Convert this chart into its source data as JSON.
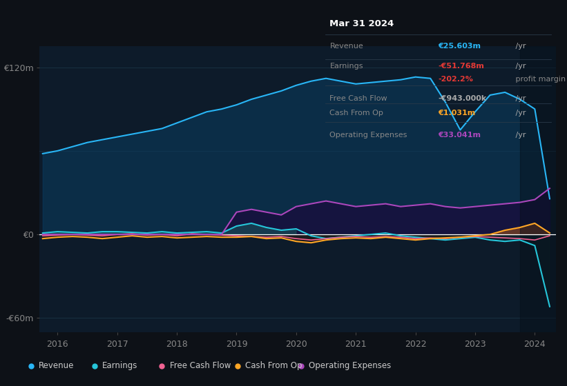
{
  "bg_color": "#0d1117",
  "plot_bg_color": "#0d1b2a",
  "grid_color": "#1e3a4a",
  "zero_line_color": "#ffffff",
  "ylim": [
    -70,
    135
  ],
  "xlim": [
    2015.7,
    2024.35
  ],
  "yticks": [
    -60,
    0,
    120
  ],
  "ytick_labels": [
    "-€60m",
    "€0",
    "€120m"
  ],
  "xticks": [
    2016,
    2017,
    2018,
    2019,
    2020,
    2021,
    2022,
    2023,
    2024
  ],
  "revenue_color": "#29b6f6",
  "earnings_color": "#26c6da",
  "fcf_color": "#f06292",
  "cashfromop_color": "#ffa726",
  "opex_color": "#ab47bc",
  "revenue_fill_color": "#0a3a5c",
  "opex_fill_color": "#1a0a3c",
  "annotation_title": "Mar 31 2024",
  "annotation_revenue": "€25.603m",
  "annotation_earnings": "-€51.768m",
  "annotation_margin": "-202.2%",
  "annotation_fcf": "-€943.000k",
  "annotation_cashfromop": "€1.031m",
  "annotation_opex": "€33.041m",
  "legend_labels": [
    "Revenue",
    "Earnings",
    "Free Cash Flow",
    "Cash From Op",
    "Operating Expenses"
  ],
  "shade_start_x": 2023.75,
  "revenue_data_x": [
    2015.75,
    2016.0,
    2016.25,
    2016.5,
    2016.75,
    2017.0,
    2017.25,
    2017.5,
    2017.75,
    2018.0,
    2018.25,
    2018.5,
    2018.75,
    2019.0,
    2019.25,
    2019.5,
    2019.75,
    2020.0,
    2020.25,
    2020.5,
    2020.75,
    2021.0,
    2021.25,
    2021.5,
    2021.75,
    2022.0,
    2022.25,
    2022.5,
    2022.75,
    2023.0,
    2023.25,
    2023.5,
    2023.75,
    2024.0,
    2024.25
  ],
  "revenue_data_y": [
    58,
    60,
    63,
    66,
    68,
    70,
    72,
    74,
    76,
    80,
    84,
    88,
    90,
    93,
    97,
    100,
    103,
    107,
    110,
    112,
    110,
    108,
    109,
    110,
    111,
    113,
    112,
    95,
    75,
    88,
    100,
    102,
    97,
    90,
    25.6
  ],
  "earnings_data_x": [
    2015.75,
    2016.0,
    2016.25,
    2016.5,
    2016.75,
    2017.0,
    2017.25,
    2017.5,
    2017.75,
    2018.0,
    2018.25,
    2018.5,
    2018.75,
    2019.0,
    2019.25,
    2019.5,
    2019.75,
    2020.0,
    2020.25,
    2020.5,
    2020.75,
    2021.0,
    2021.25,
    2021.5,
    2021.75,
    2022.0,
    2022.25,
    2022.5,
    2022.75,
    2023.0,
    2023.25,
    2023.5,
    2023.75,
    2024.0,
    2024.25
  ],
  "earnings_data_y": [
    1,
    2,
    1.5,
    1,
    2,
    2,
    1.5,
    1,
    2,
    1,
    1.5,
    2,
    1,
    6,
    8,
    5,
    3,
    4,
    -1,
    -3,
    -2,
    -1,
    0,
    1,
    -1,
    -2,
    -3,
    -4,
    -3,
    -2,
    -4,
    -5,
    -4,
    -8,
    -51.768
  ],
  "fcf_data_x": [
    2015.75,
    2016.0,
    2016.25,
    2016.5,
    2016.75,
    2017.0,
    2017.25,
    2017.5,
    2017.75,
    2018.0,
    2018.25,
    2018.5,
    2018.75,
    2019.0,
    2019.25,
    2019.5,
    2019.75,
    2020.0,
    2020.25,
    2020.5,
    2020.75,
    2021.0,
    2021.25,
    2021.5,
    2021.75,
    2022.0,
    2022.25,
    2022.5,
    2022.75,
    2023.0,
    2023.25,
    2023.5,
    2023.75,
    2024.0,
    2024.25
  ],
  "fcf_data_y": [
    -1,
    -0.5,
    0,
    -0.5,
    -1,
    0,
    0.5,
    -0.5,
    0,
    -1,
    0.5,
    0,
    -0.5,
    -1,
    -1.5,
    -2,
    -1.5,
    -3,
    -4,
    -3,
    -2,
    -1.5,
    -2,
    -1.5,
    -2,
    -3,
    -2.5,
    -3,
    -2,
    -1.5,
    -2,
    -2.5,
    -3,
    -4,
    -0.943
  ],
  "cashfromop_data_x": [
    2015.75,
    2016.0,
    2016.25,
    2016.5,
    2016.75,
    2017.0,
    2017.25,
    2017.5,
    2017.75,
    2018.0,
    2018.25,
    2018.5,
    2018.75,
    2019.0,
    2019.25,
    2019.5,
    2019.75,
    2020.0,
    2020.25,
    2020.5,
    2020.75,
    2021.0,
    2021.25,
    2021.5,
    2021.75,
    2022.0,
    2022.25,
    2022.5,
    2022.75,
    2023.0,
    2023.25,
    2023.5,
    2023.75,
    2024.0,
    2024.25
  ],
  "cashfromop_data_y": [
    -3,
    -2,
    -1.5,
    -2,
    -3,
    -2,
    -1,
    -2,
    -1.5,
    -2.5,
    -2,
    -1.5,
    -2,
    -2,
    -1.5,
    -3,
    -2.5,
    -5,
    -6,
    -4,
    -3,
    -2.5,
    -3,
    -2,
    -3,
    -4,
    -3,
    -2.5,
    -2,
    -1,
    0,
    3,
    5,
    8,
    1.031
  ],
  "opex_data_x": [
    2015.75,
    2016.0,
    2016.25,
    2016.5,
    2016.75,
    2017.0,
    2017.25,
    2017.5,
    2017.75,
    2018.0,
    2018.25,
    2018.5,
    2018.75,
    2019.0,
    2019.25,
    2019.5,
    2019.75,
    2020.0,
    2020.25,
    2020.5,
    2020.75,
    2021.0,
    2021.25,
    2021.5,
    2021.75,
    2022.0,
    2022.25,
    2022.5,
    2022.75,
    2023.0,
    2023.25,
    2023.5,
    2023.75,
    2024.0,
    2024.25
  ],
  "opex_data_y": [
    0,
    0,
    0,
    0,
    0,
    0,
    0,
    0,
    0,
    0,
    0,
    0,
    0,
    16,
    18,
    16,
    14,
    20,
    22,
    24,
    22,
    20,
    21,
    22,
    20,
    21,
    22,
    20,
    19,
    20,
    21,
    22,
    23,
    25,
    33.041
  ]
}
